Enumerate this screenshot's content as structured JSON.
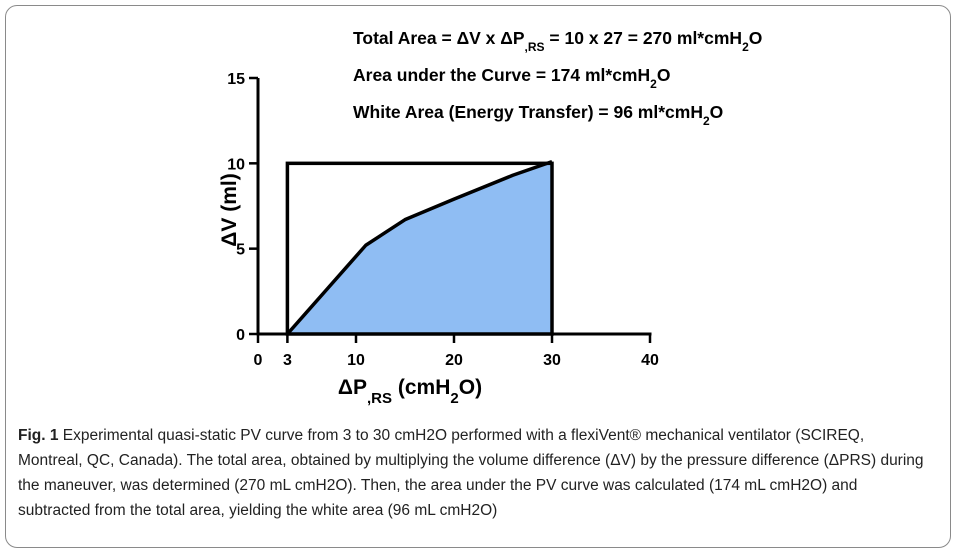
{
  "chart_data": {
    "type": "area",
    "xlabel": "ΔP,RS (cmH2O)",
    "ylabel": "ΔV (ml)",
    "xlim": [
      0,
      40
    ],
    "ylim": [
      0,
      15
    ],
    "xticks": [
      0,
      3,
      10,
      20,
      30,
      40
    ],
    "yticks": [
      0,
      5,
      10,
      15
    ],
    "x": [
      3,
      5,
      7,
      9,
      11,
      15,
      20,
      26,
      30
    ],
    "y": [
      0,
      1.3,
      2.6,
      3.9,
      5.2,
      6.7,
      7.9,
      9.3,
      10.1
    ],
    "rectangle": {
      "x": [
        3,
        30
      ],
      "y": [
        0,
        10
      ]
    },
    "fill_color": "#8fbdf3",
    "annotations": [
      "Total Area = ΔV x ΔP,RS = 10 x 27 = 270 ml*cmH2O",
      "Area under the Curve = 174 ml*cmH2O",
      "White Area (Energy Transfer) = 96 ml*cmH2O"
    ],
    "grid": false
  },
  "caption": {
    "label": "Fig. 1",
    "text": "Experimental quasi-static PV curve from 3 to 30 cmH2O performed with a flexiVent® mechanical ventilator (SCIREQ, Montreal, QC, Canada). The total area, obtained by multiplying the volume difference (ΔV) by the pressure difference (ΔPRS) during the maneuver, was determined (270 mL cmH2O). Then, the area under the PV curve was calculated (174 mL cmH2O) and subtracted from the total area, yielding the white area (96 mL cmH2O)"
  }
}
